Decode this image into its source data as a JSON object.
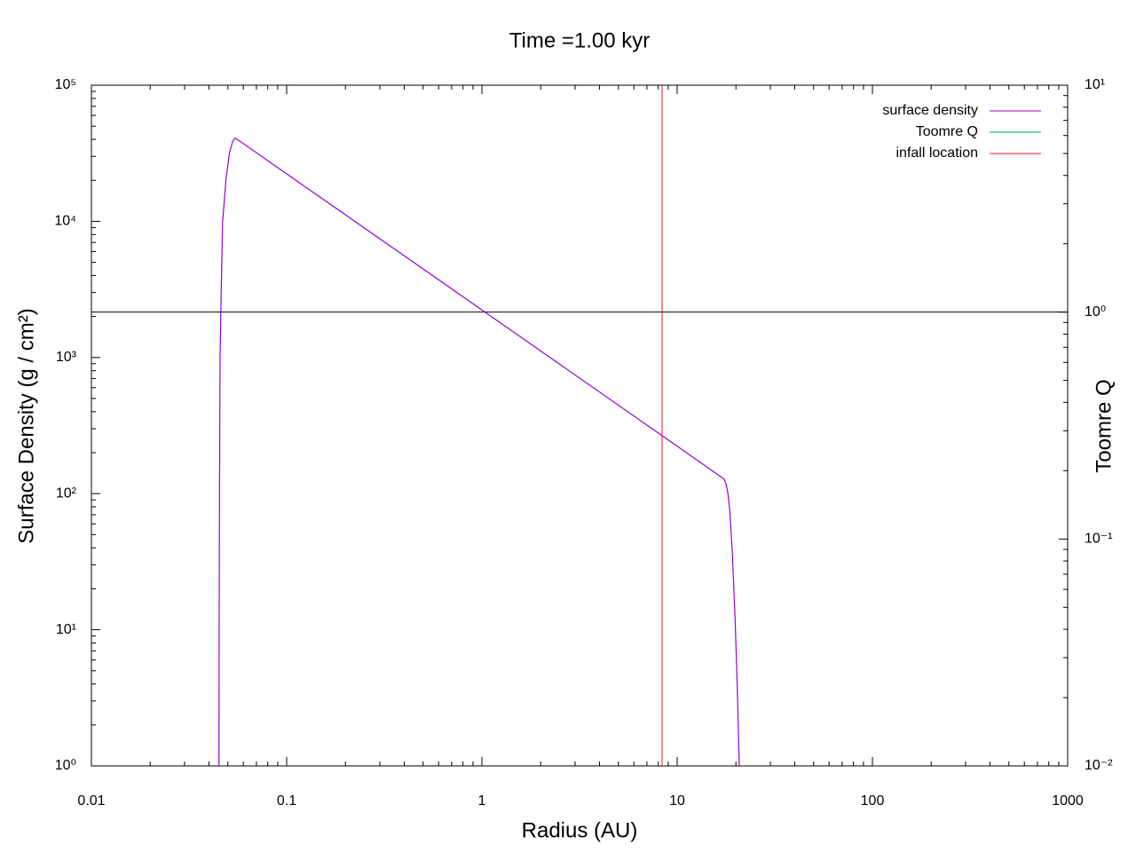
{
  "chart_data": {
    "type": "line",
    "title": "Time =1.00 kyr",
    "xlabel": "Radius (AU)",
    "ylabel": "Surface Density (g / cm²)",
    "y2label": "Toomre Q",
    "xscale": "log",
    "yscale": "log",
    "y2scale": "log",
    "xlim": [
      0.01,
      1000
    ],
    "xticks": [
      0.01,
      0.1,
      1,
      10,
      100,
      1000
    ],
    "ylim": [
      1,
      100000
    ],
    "yticks": [
      {
        "value": 1,
        "label": "10⁰"
      },
      {
        "value": 10,
        "label": "10¹"
      },
      {
        "value": 100,
        "label": "10²"
      },
      {
        "value": 1000,
        "label": "10³"
      },
      {
        "value": 10000,
        "label": "10⁴"
      },
      {
        "value": 100000,
        "label": "10⁵"
      }
    ],
    "y2lim": [
      0.01,
      10
    ],
    "y2ticks": [
      {
        "value": 0.01,
        "label": "10⁻²"
      },
      {
        "value": 0.1,
        "label": "10⁻¹"
      },
      {
        "value": 1,
        "label": "10⁰"
      },
      {
        "value": 10,
        "label": "10¹"
      }
    ],
    "legend": "top-right",
    "reference_line": {
      "axis": "y2",
      "value": 1,
      "color": "#000000"
    },
    "series": [
      {
        "name": "surface density",
        "color": "#9400d3",
        "x": [
          0.045,
          0.0451,
          0.0453,
          0.0456,
          0.0462,
          0.047,
          0.049,
          0.051,
          0.053,
          0.0545,
          0.1,
          1,
          10,
          17.4,
          17.8,
          18.2,
          18.6,
          19.2,
          19.8,
          20.3,
          20.8
        ],
        "values": [
          1,
          10,
          100,
          1000,
          3000,
          10000,
          21000,
          32000,
          39000,
          41000,
          22340,
          2234,
          223,
          128,
          118,
          100,
          75,
          35,
          12,
          4,
          1
        ]
      },
      {
        "name": "Toomre Q",
        "color": "#009e73",
        "axis": "y2",
        "x": [],
        "values": []
      },
      {
        "name": "infall location",
        "color": "#e41a1c",
        "x": [
          8.37
        ],
        "vertical": true
      }
    ]
  }
}
